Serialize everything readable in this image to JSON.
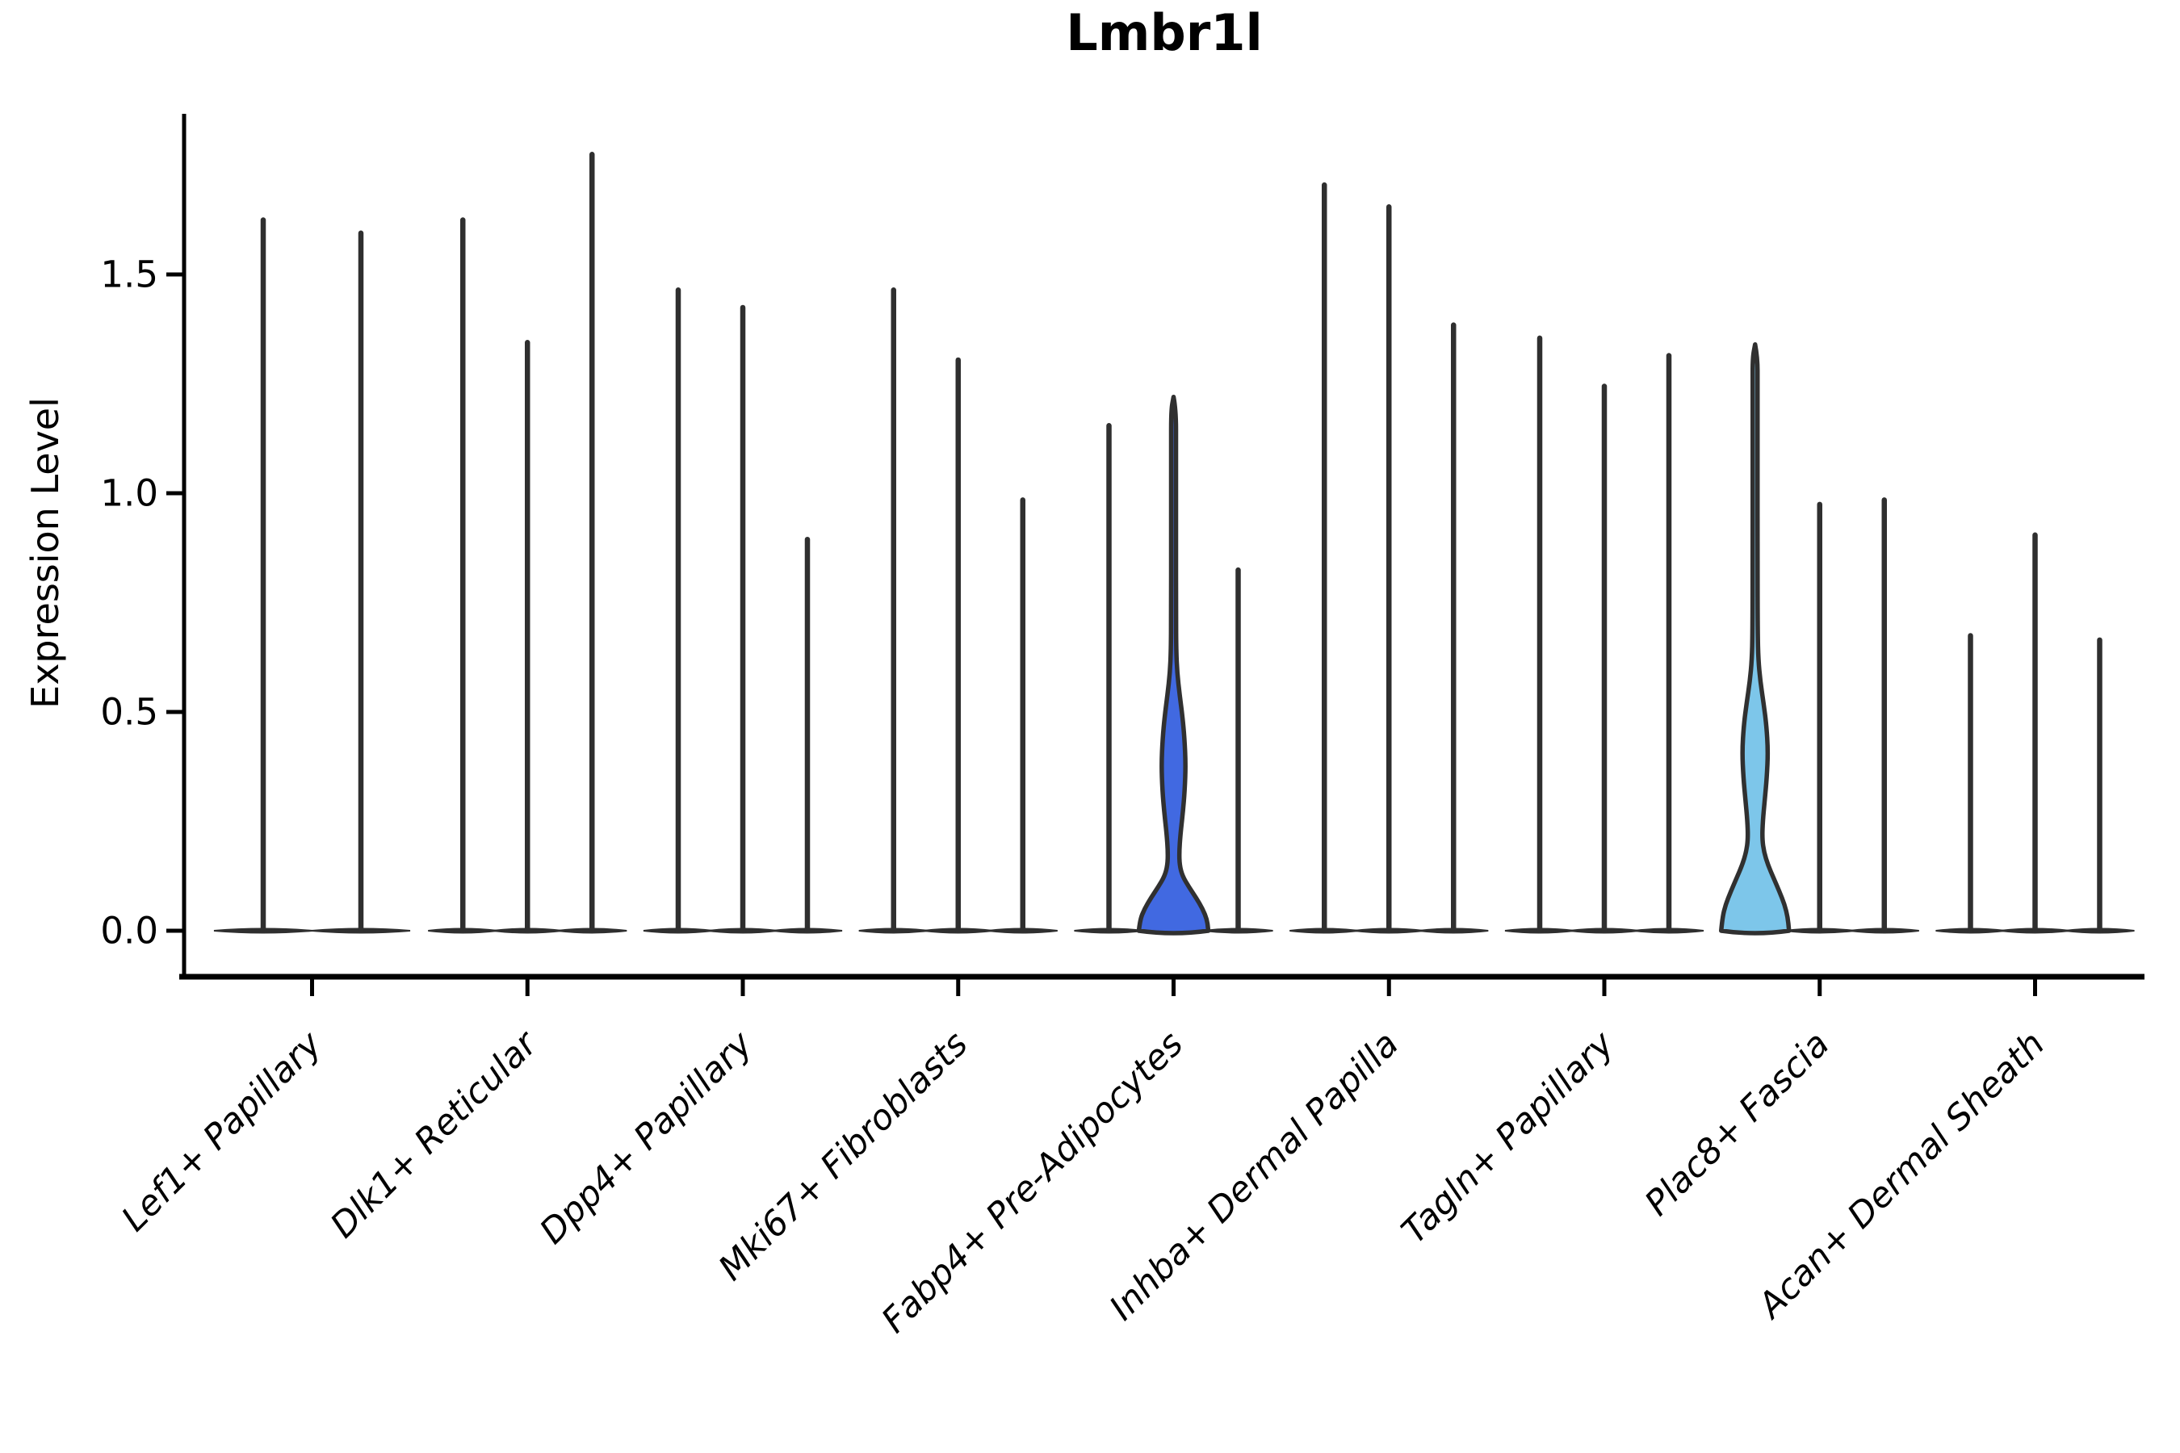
{
  "chart_data": {
    "type": "violin",
    "title": "Lmbr1l",
    "ylabel": "Expression Level",
    "yticks": [
      0.0,
      0.5,
      1.0,
      1.5
    ],
    "ytick_labels": [
      "0.0",
      "0.5",
      "1.0",
      "1.5"
    ],
    "ylim": [
      -0.09,
      1.87
    ],
    "grid": false,
    "legend": "none",
    "categories": [
      "Lef1+ Papillary",
      "Dlk1+ Reticular",
      "Dpp4+ Papillary",
      "Mki67+ Fibroblasts",
      "Fabp4+ Pre-Adipocytes",
      "Inhba+ Dermal Papilla",
      "Tagln+ Papillary",
      "Plac8+ Fascia",
      "Acan+ Dermal Sheath"
    ],
    "colors": {
      "collapsed_violin": "#2f2f2f",
      "violin_outline": "#303030",
      "royalblue_fill": "#4169e1",
      "skyblue_fill": "#7dc6ea",
      "axis": "#000000"
    },
    "groups": [
      {
        "category": "Lef1+ Papillary",
        "violins": [
          {
            "max": 1.63
          },
          {
            "max": 1.6
          }
        ]
      },
      {
        "category": "Dlk1+ Reticular",
        "violins": [
          {
            "max": 1.63
          },
          {
            "max": 1.35
          },
          {
            "max": 1.78
          }
        ]
      },
      {
        "category": "Dpp4+ Papillary",
        "violins": [
          {
            "max": 1.47
          },
          {
            "max": 1.43
          },
          {
            "max": 0.9
          }
        ]
      },
      {
        "category": "Mki67+ Fibroblasts",
        "violins": [
          {
            "max": 1.47
          },
          {
            "max": 1.31
          },
          {
            "max": 0.99
          }
        ]
      },
      {
        "category": "Fabp4+ Pre-Adipocytes",
        "violins": [
          {
            "max": 1.16
          },
          {
            "max": 1.22,
            "body": true,
            "fill": "#4169e1",
            "profile": [
              [
                0,
                43
              ],
              [
                0.025,
                41.5
              ],
              [
                0.05,
                36
              ],
              [
                0.075,
                28
              ],
              [
                0.1,
                19
              ],
              [
                0.125,
                11
              ],
              [
                0.15,
                7.5
              ],
              [
                0.18,
                7
              ],
              [
                0.22,
                8.5
              ],
              [
                0.27,
                11.5
              ],
              [
                0.32,
                13.8
              ],
              [
                0.38,
                15
              ],
              [
                0.44,
                13.5
              ],
              [
                0.49,
                11
              ],
              [
                0.54,
                7.5
              ],
              [
                0.59,
                4.5
              ],
              [
                0.64,
                3.3
              ],
              [
                0.72,
                3
              ],
              [
                0.9,
                3
              ],
              [
                1.1,
                3
              ],
              [
                1.19,
                3
              ],
              [
                1.22,
                0
              ]
            ]
          },
          {
            "max": 0.83
          }
        ]
      },
      {
        "category": "Inhba+ Dermal Papilla",
        "violins": [
          {
            "max": 1.71
          },
          {
            "max": 1.66
          },
          {
            "max": 1.39
          }
        ]
      },
      {
        "category": "Tagln+ Papillary",
        "violins": [
          {
            "max": 1.36
          },
          {
            "max": 1.25
          },
          {
            "max": 1.32
          }
        ]
      },
      {
        "category": "Plac8+ Fascia",
        "violins": [
          {
            "max": 1.34,
            "body": true,
            "fill": "#7dc6ea",
            "profile": [
              [
                0,
                42
              ],
              [
                0.03,
                40.5
              ],
              [
                0.06,
                36.5
              ],
              [
                0.09,
                30
              ],
              [
                0.12,
                23
              ],
              [
                0.15,
                16
              ],
              [
                0.18,
                11
              ],
              [
                0.21,
                8.8
              ],
              [
                0.25,
                9.5
              ],
              [
                0.3,
                12
              ],
              [
                0.35,
                14.5
              ],
              [
                0.41,
                16
              ],
              [
                0.47,
                14
              ],
              [
                0.52,
                10.5
              ],
              [
                0.57,
                6.5
              ],
              [
                0.62,
                4
              ],
              [
                0.68,
                3.2
              ],
              [
                0.85,
                3
              ],
              [
                1.05,
                3
              ],
              [
                1.25,
                3
              ],
              [
                1.31,
                3
              ],
              [
                1.34,
                0
              ]
            ]
          },
          {
            "max": 0.98
          },
          {
            "max": 0.99
          }
        ]
      },
      {
        "category": "Acan+ Dermal Sheath",
        "violins": [
          {
            "max": 0.68
          },
          {
            "max": 0.91
          },
          {
            "max": 0.67
          }
        ]
      }
    ]
  }
}
